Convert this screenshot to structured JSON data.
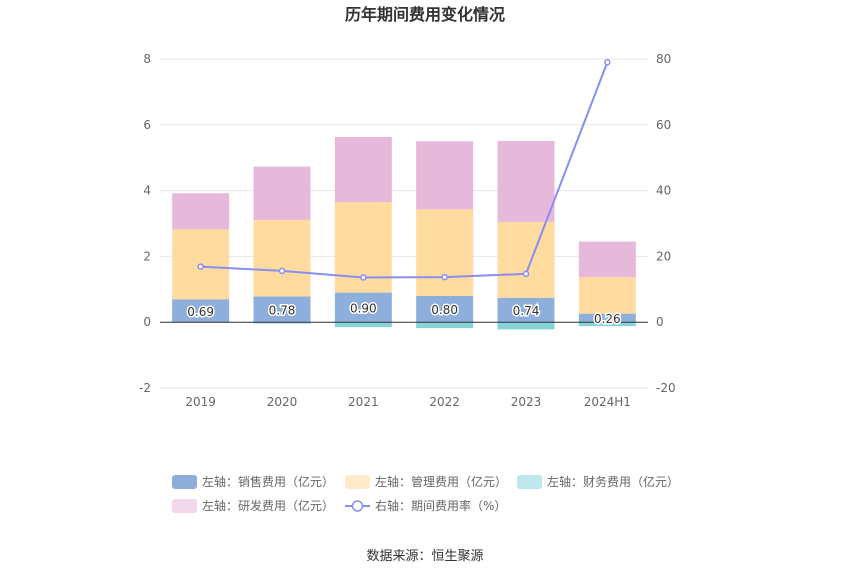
{
  "chart_data": {
    "type": "bar",
    "title": "历年期间费用变化情况",
    "categories": [
      "2019",
      "2020",
      "2021",
      "2022",
      "2023",
      "2024H1"
    ],
    "series": [
      {
        "name": "左轴：销售费用（亿元）",
        "axis": "left",
        "stack": true,
        "color": "#8eaedb",
        "values": [
          0.69,
          0.78,
          0.9,
          0.8,
          0.74,
          0.26
        ]
      },
      {
        "name": "左轴：管理费用（亿元）",
        "axis": "left",
        "stack": true,
        "color": "#ffdb9f",
        "values": [
          2.13,
          2.33,
          2.75,
          2.63,
          2.31,
          1.11
        ]
      },
      {
        "name": "左轴：财务费用（亿元）",
        "axis": "left",
        "stack": true,
        "color": "#86d3da",
        "values": [
          0.0,
          -0.04,
          -0.15,
          -0.18,
          -0.22,
          -0.12
        ]
      },
      {
        "name": "左轴：研发费用（亿元）",
        "axis": "left",
        "stack": true,
        "color": "#e6b8da",
        "values": [
          1.1,
          1.62,
          1.98,
          2.07,
          2.46,
          1.08
        ]
      },
      {
        "name": "右轴：期间费用率（%）",
        "axis": "right",
        "type": "line",
        "color": "#8a8ef0",
        "values": [
          16.9,
          15.6,
          13.6,
          13.7,
          14.7,
          79.0
        ]
      }
    ],
    "data_labels": [
      "0.69",
      "0.78",
      "0.90",
      "0.80",
      "0.74",
      "0.26"
    ],
    "left_axis": {
      "ylim": [
        -2,
        8
      ],
      "ticks": [
        "-2",
        "0",
        "2",
        "4",
        "6",
        "8"
      ]
    },
    "right_axis": {
      "ylim": [
        -20,
        80
      ],
      "ticks": [
        "-20",
        "0",
        "20",
        "40",
        "60",
        "80"
      ]
    },
    "grid": true,
    "legend_position": "bottom"
  },
  "source": "数据来源：恒生聚源"
}
